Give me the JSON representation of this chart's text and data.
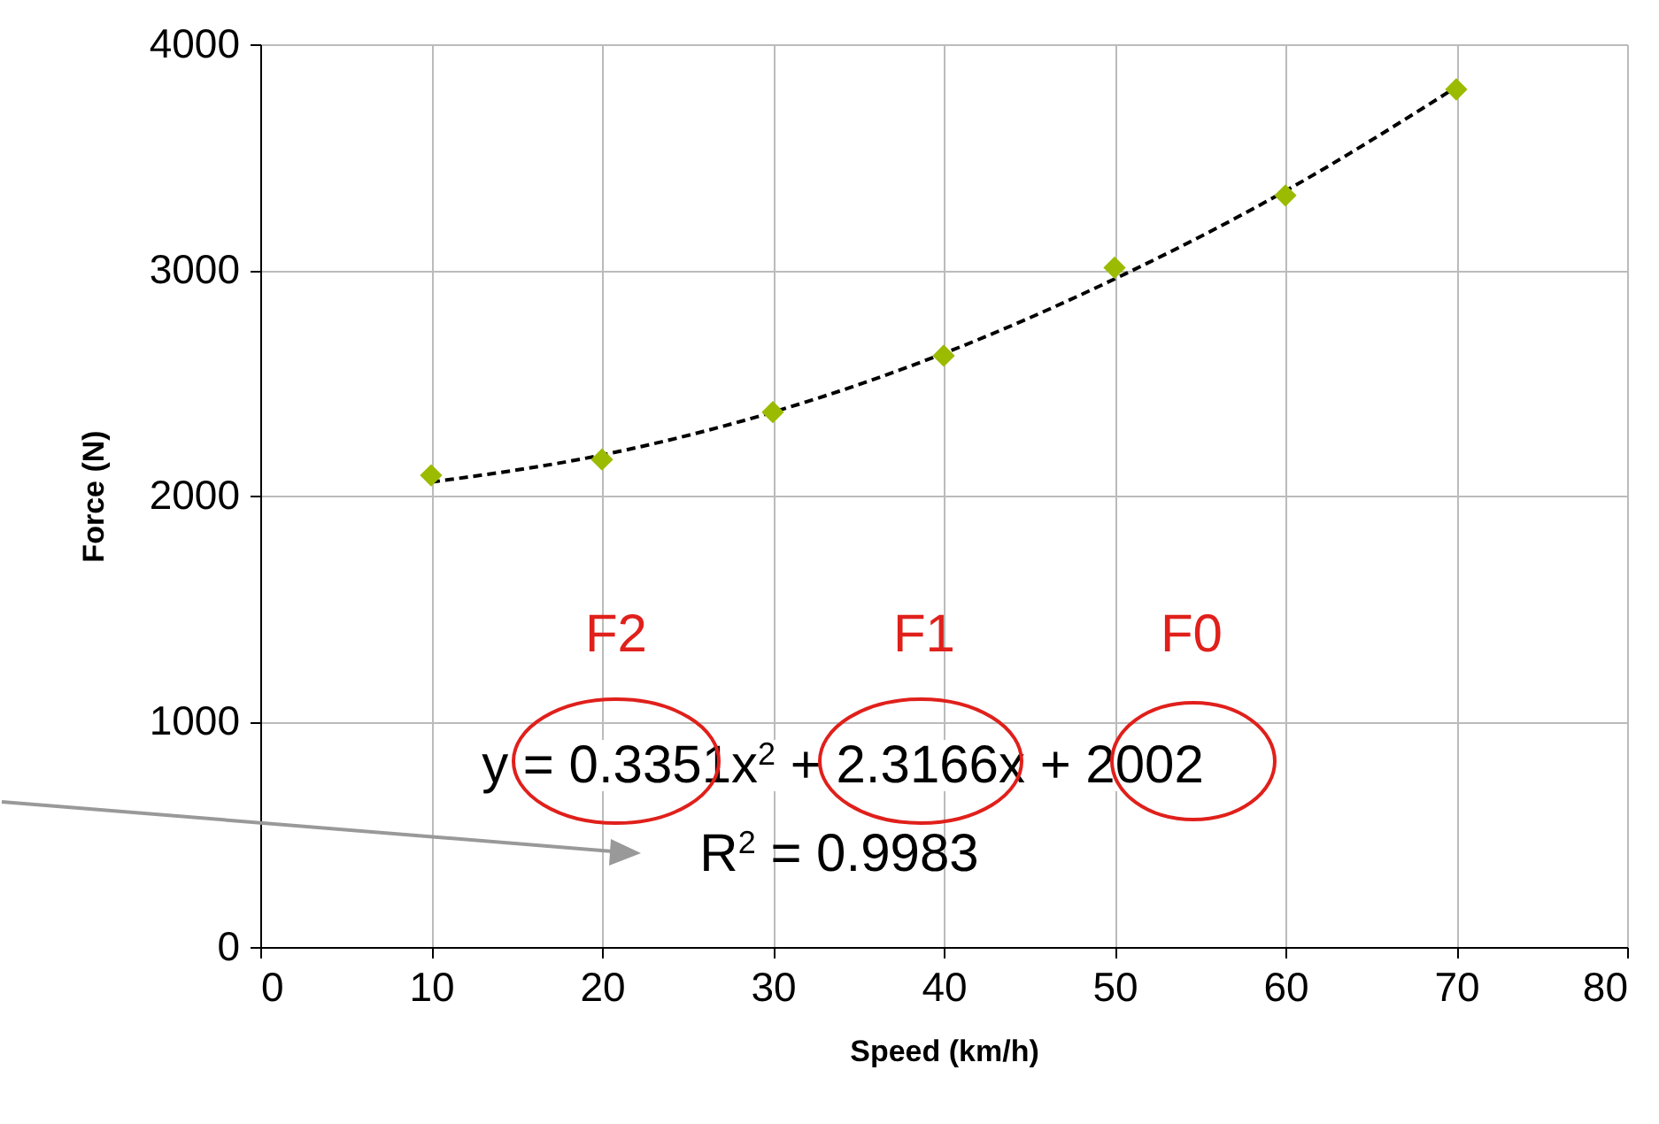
{
  "chart_data": {
    "type": "scatter",
    "xlabel": "Speed (km/h)",
    "ylabel": "Force (N)",
    "x": [
      10,
      20,
      30,
      40,
      50,
      60,
      70
    ],
    "series": [
      {
        "color": "#9bbb00",
        "marker": "diamond",
        "values": [
          2090,
          2160,
          2370,
          2620,
          3010,
          3330,
          3800
        ]
      },
      {
        "type": "line",
        "color": "#000000",
        "line_style": "dashed",
        "values": [
          2060,
          2180,
          2370,
          2630,
          2960,
          3350,
          3810
        ]
      }
    ],
    "xlim": [
      0,
      80
    ],
    "xticks": [
      0,
      10,
      20,
      30,
      40,
      50,
      60,
      70,
      80
    ],
    "ylim": [
      0,
      4000
    ],
    "yticks": [
      0,
      1000,
      2000,
      3000,
      4000
    ],
    "grid": true,
    "annotations": [
      "F2",
      "F1",
      "F0",
      "y = 0.3351x$^{2}$ + 2.3166x + 2002",
      "R$^{2}$ = 0.9983"
    ]
  }
}
